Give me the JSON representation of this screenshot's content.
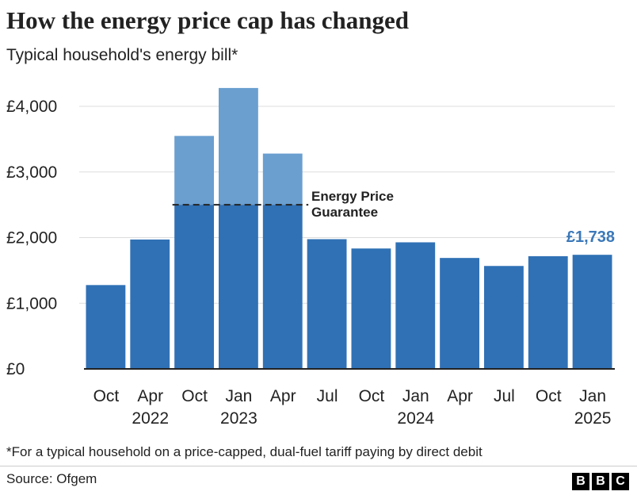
{
  "chart_data": {
    "type": "bar",
    "title": "How the energy price cap has changed",
    "subtitle": "Typical household's energy bill*",
    "categories": [
      "Oct",
      "Apr",
      "Oct",
      "Jan",
      "Apr",
      "Jul",
      "Oct",
      "Jan",
      "Apr",
      "Jul",
      "Oct",
      "Jan"
    ],
    "years": [
      null,
      "2022",
      null,
      "2023",
      null,
      null,
      null,
      "2024",
      null,
      null,
      null,
      "2025"
    ],
    "values": [
      1277,
      1971,
      3549,
      4279,
      3280,
      1976,
      1834,
      1928,
      1690,
      1568,
      1717,
      1738
    ],
    "value_labels": [
      null,
      null,
      null,
      null,
      null,
      null,
      null,
      null,
      null,
      null,
      null,
      "£1,738"
    ],
    "color": "#3071b5",
    "guarantee": {
      "label": "Energy Price Guarantee",
      "value": 2500,
      "indices": [
        2,
        3,
        4
      ],
      "color": "#6a9fd0"
    },
    "ylim": [
      0,
      4000
    ],
    "yticks": [
      {
        "value": 0,
        "label": "£0"
      },
      {
        "value": 1000,
        "label": "£1,000"
      },
      {
        "value": 2000,
        "label": "£2,000"
      },
      {
        "value": 3000,
        "label": "£3,000"
      },
      {
        "value": 4000,
        "label": "£4,000"
      }
    ],
    "grid": true,
    "footnote": "*For a typical household on a price-capped, dual-fuel tariff paying by direct debit",
    "source": "Source: Ofgem"
  }
}
